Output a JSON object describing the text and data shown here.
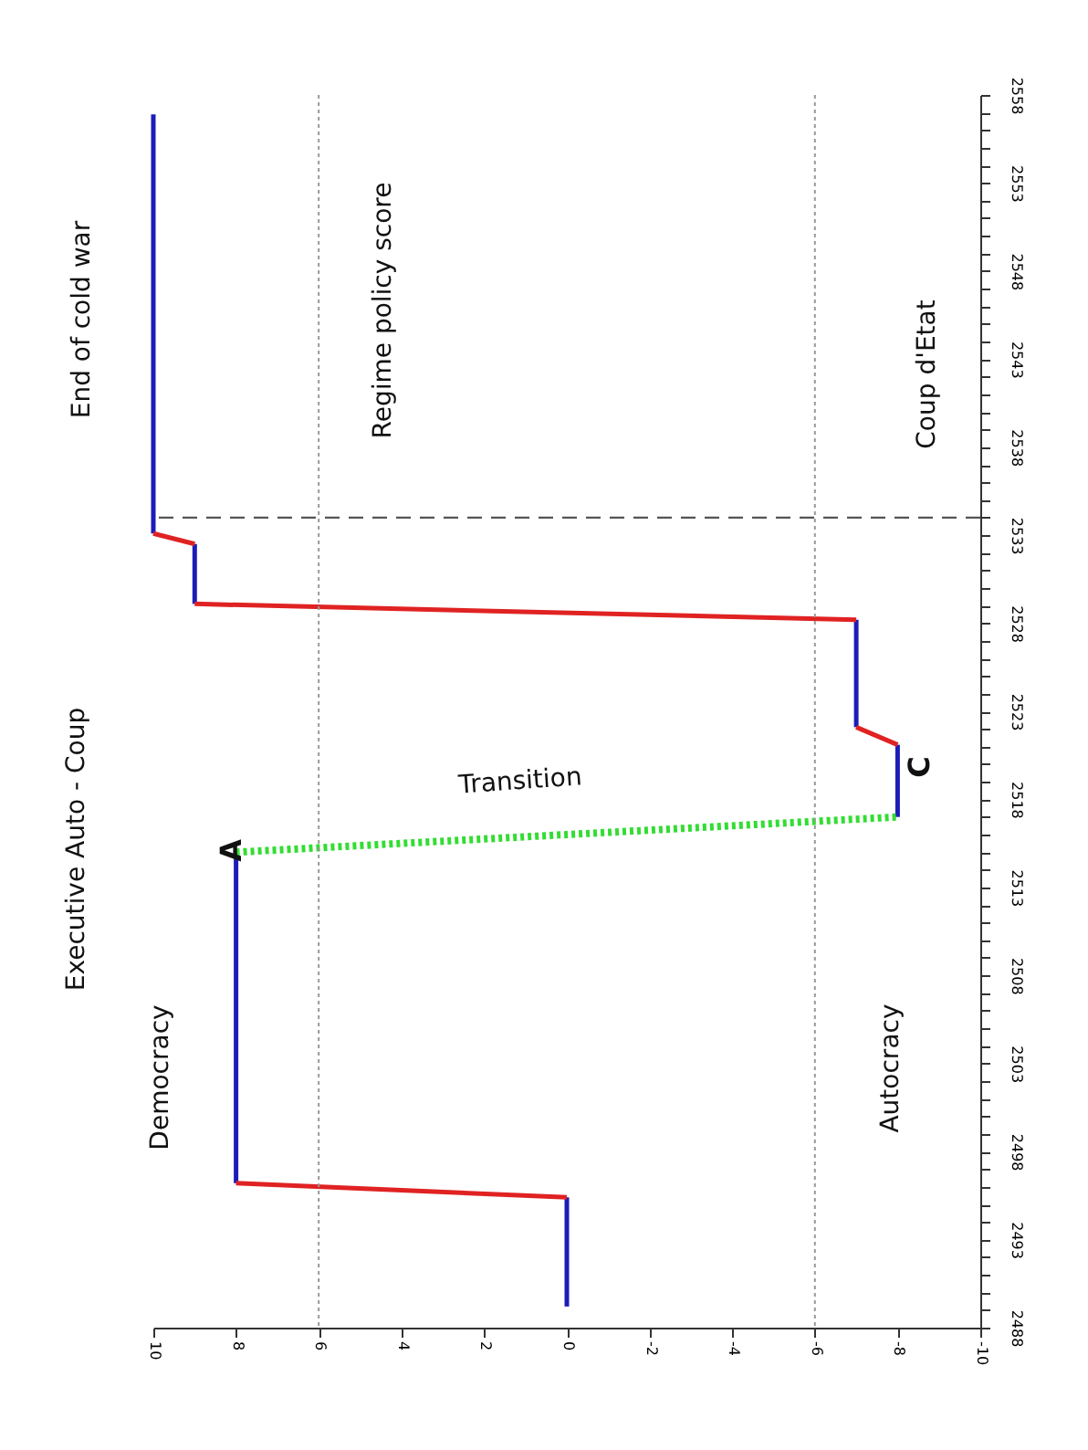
{
  "chart_data": {
    "type": "line",
    "xlim": [
      10,
      -10
    ],
    "xticks": [
      10,
      8,
      6,
      4,
      2,
      0,
      -2,
      -4,
      -6,
      -8,
      -10
    ],
    "ylim": [
      2488,
      2558
    ],
    "yticks": [
      2488,
      {
        "value": 2489,
        "label": null
      },
      {
        "value": 2490,
        "label": null
      },
      {
        "value": 2491,
        "label": null
      },
      {
        "value": 2492,
        "label": null
      },
      2493,
      {
        "value": 2494,
        "label": null
      },
      {
        "value": 2495,
        "label": null
      },
      {
        "value": 2496,
        "label": null
      },
      {
        "value": 2497,
        "label": null
      },
      2498,
      {
        "value": 2499,
        "label": null
      },
      {
        "value": 2500,
        "label": null
      },
      {
        "value": 2501,
        "label": null
      },
      {
        "value": 2502,
        "label": null
      },
      2503,
      {
        "value": 2504,
        "label": null
      },
      {
        "value": 2505,
        "label": null
      },
      {
        "value": 2506,
        "label": null
      },
      {
        "value": 2507,
        "label": null
      },
      2508,
      {
        "value": 2509,
        "label": null
      },
      {
        "value": 2510,
        "label": null
      },
      {
        "value": 2511,
        "label": null
      },
      {
        "value": 2512,
        "label": null
      },
      2513,
      {
        "value": 2514,
        "label": null
      },
      {
        "value": 2515,
        "label": null
      },
      {
        "value": 2516,
        "label": null
      },
      {
        "value": 2517,
        "label": null
      },
      2518,
      {
        "value": 2519,
        "label": null
      },
      {
        "value": 2520,
        "label": null
      },
      {
        "value": 2521,
        "label": null
      },
      {
        "value": 2522,
        "label": null
      },
      2523,
      {
        "value": 2524,
        "label": null
      },
      {
        "value": 2525,
        "label": null
      },
      {
        "value": 2526,
        "label": null
      },
      {
        "value": 2527,
        "label": null
      },
      2528,
      {
        "value": 2529,
        "label": null
      },
      {
        "value": 2530,
        "label": null
      },
      {
        "value": 2531,
        "label": null
      },
      {
        "value": 2532,
        "label": null
      },
      2533,
      {
        "value": 2534,
        "label": null
      },
      {
        "value": 2535,
        "label": null
      },
      {
        "value": 2536,
        "label": null
      },
      {
        "value": 2537,
        "label": null
      },
      2538,
      {
        "value": 2539,
        "label": null
      },
      {
        "value": 2540,
        "label": null
      },
      {
        "value": 2541,
        "label": null
      },
      {
        "value": 2542,
        "label": null
      },
      2543,
      {
        "value": 2544,
        "label": null
      },
      {
        "value": 2545,
        "label": null
      },
      {
        "value": 2546,
        "label": null
      },
      {
        "value": 2547,
        "label": null
      },
      2548,
      {
        "value": 2549,
        "label": null
      },
      {
        "value": 2550,
        "label": null
      },
      {
        "value": 2551,
        "label": null
      },
      {
        "value": 2552,
        "label": null
      },
      2553,
      {
        "value": 2554,
        "label": null
      },
      {
        "value": 2555,
        "label": null
      },
      {
        "value": 2556,
        "label": null
      },
      {
        "value": 2557,
        "label": null
      },
      2558
    ],
    "series": [
      {
        "color": "#1c1cb8",
        "x": [
          0,
          0,
          null,
          8,
          8,
          null,
          -8,
          -8,
          null,
          -7,
          -7,
          null,
          9,
          9,
          null,
          10,
          10
        ],
        "values": [
          2489.2,
          2495.4,
          null,
          2496.2,
          2515,
          null,
          2517,
          2521.1,
          null,
          2522.1,
          2528.2,
          null,
          2529.1,
          2532.5,
          null,
          2533.1,
          2556.9
        ]
      },
      {
        "color": "#e02222",
        "x": [
          0,
          8,
          null,
          -8,
          -7,
          null,
          -7,
          9,
          null,
          9,
          10
        ],
        "values": [
          2495.4,
          2496.2,
          null,
          2521.1,
          2522.1,
          null,
          2528.2,
          2529.1,
          null,
          2532.5,
          2533.1
        ]
      },
      {
        "color": "#33dd33",
        "line_style": "dotted",
        "x": [
          8,
          -8
        ],
        "values": [
          2515,
          2517
        ]
      }
    ],
    "ref_lines": [
      {
        "axis": "x",
        "value": 6,
        "color": "#999999",
        "line_style": "dotted"
      },
      {
        "axis": "x",
        "value": -6,
        "color": "#999999",
        "line_style": "dotted"
      },
      {
        "axis": "y",
        "value": 2534,
        "color": "#555555",
        "line_style": "dashed"
      }
    ],
    "annotations": [
      "End of cold war",
      "Executive Auto - Coup",
      "Democracy",
      "Regime policy score",
      "Transition",
      "Coup d'Etat",
      "Autocracy",
      {
        "text": "A",
        "x": 8.1,
        "y": 2515.1
      },
      "C"
    ],
    "marker": "none",
    "grid": false
  }
}
